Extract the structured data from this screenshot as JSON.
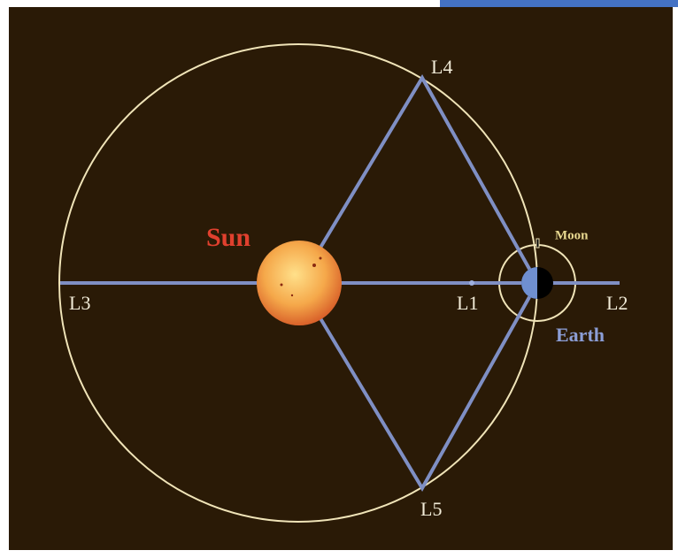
{
  "bodies": {
    "sun": "Sun",
    "moon": "Moon",
    "earth": "Earth"
  },
  "points": {
    "l1": "L1",
    "l2": "L2",
    "l3": "L3",
    "l4": "L4",
    "l5": "L5"
  }
}
